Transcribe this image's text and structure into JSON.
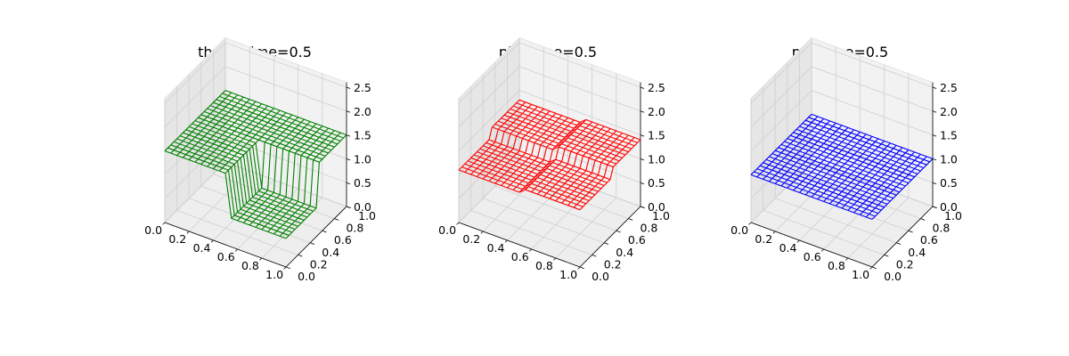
{
  "chart_data": [
    {
      "type": "surface",
      "title": "theta: time=0.5",
      "color": "#008000",
      "x": [
        0,
        0.05,
        0.1,
        0.15,
        0.2,
        0.25,
        0.3,
        0.35,
        0.4,
        0.45,
        0.5,
        0.55,
        0.6,
        0.65,
        0.7,
        0.75,
        0.8,
        0.85,
        0.9,
        0.95,
        1.0
      ],
      "y": [
        0,
        0.05,
        0.1,
        0.15,
        0.2,
        0.25,
        0.3,
        0.35,
        0.4,
        0.45,
        0.5,
        0.55,
        0.6,
        0.65,
        0.7,
        0.75,
        0.8,
        0.85,
        0.9,
        0.95,
        1.0
      ],
      "z_levels": {
        "low": 0.6,
        "mid": 1.5,
        "high": 2.1
      },
      "regions": [
        {
          "x_range": [
            0.0,
            0.5
          ],
          "y_range": [
            0.0,
            1.0
          ],
          "z": 1.5
        },
        {
          "x_range": [
            0.5,
            1.0
          ],
          "y_range": [
            0.0,
            0.5
          ],
          "z": 0.6
        },
        {
          "x_range": [
            0.5,
            1.0
          ],
          "y_range": [
            0.5,
            1.0
          ],
          "z": 1.5
        },
        {
          "x_range": [
            0.0,
            0.5
          ],
          "y_range": [
            0.5,
            1.0
          ],
          "z": 2.1
        }
      ],
      "xticks": [
        "0.0",
        "0.2",
        "0.4",
        "0.6",
        "0.8",
        "1.0"
      ],
      "yticks": [
        "0.0",
        "0.2",
        "0.4",
        "0.6",
        "0.8",
        "1.0"
      ],
      "zticks": [
        "0.0",
        "0.5",
        "1.0",
        "1.5",
        "2.0",
        "2.5"
      ],
      "xlim": [
        0,
        1
      ],
      "ylim": [
        0,
        1
      ],
      "zlim": [
        0,
        2.6
      ],
      "grid": true
    },
    {
      "type": "surface",
      "title": "phi: time=0.5",
      "color": "#ff0000",
      "x": [
        0,
        0.05,
        0.1,
        0.15,
        0.2,
        0.25,
        0.3,
        0.35,
        0.4,
        0.45,
        0.5,
        0.55,
        0.6,
        0.65,
        0.7,
        0.75,
        0.8,
        0.85,
        0.9,
        0.95,
        1.0
      ],
      "y": [
        0,
        0.05,
        0.1,
        0.15,
        0.2,
        0.25,
        0.3,
        0.35,
        0.4,
        0.45,
        0.5,
        0.55,
        0.6,
        0.65,
        0.7,
        0.75,
        0.8,
        0.85,
        0.9,
        0.95,
        1.0
      ],
      "regions": [
        {
          "x_range": [
            0.0,
            0.5
          ],
          "y_range": [
            0.0,
            0.5
          ],
          "z": 1.1
        },
        {
          "x_range": [
            0.5,
            1.0
          ],
          "y_range": [
            0.0,
            0.5
          ],
          "z": 1.2
        },
        {
          "x_range": [
            0.0,
            0.5
          ],
          "y_range": [
            0.5,
            1.0
          ],
          "z": 1.3
        },
        {
          "x_range": [
            0.5,
            1.0
          ],
          "y_range": [
            0.5,
            1.0
          ],
          "z": 1.4
        }
      ],
      "xticks": [
        "0.0",
        "0.2",
        "0.4",
        "0.6",
        "0.8",
        "1.0"
      ],
      "yticks": [
        "0.0",
        "0.2",
        "0.4",
        "0.6",
        "0.8",
        "1.0"
      ],
      "zticks": [
        "0.0",
        "0.5",
        "1.0",
        "1.5",
        "2.0",
        "2.5"
      ],
      "xlim": [
        0,
        1
      ],
      "ylim": [
        0,
        1
      ],
      "zlim": [
        0,
        2.6
      ],
      "grid": true
    },
    {
      "type": "surface",
      "title": "psi: time=0.5",
      "color": "#0000ff",
      "x": [
        0,
        0.05,
        0.1,
        0.15,
        0.2,
        0.25,
        0.3,
        0.35,
        0.4,
        0.45,
        0.5,
        0.55,
        0.6,
        0.65,
        0.7,
        0.75,
        0.8,
        0.85,
        0.9,
        0.95,
        1.0
      ],
      "y": [
        0,
        0.05,
        0.1,
        0.15,
        0.2,
        0.25,
        0.3,
        0.35,
        0.4,
        0.45,
        0.5,
        0.55,
        0.6,
        0.65,
        0.7,
        0.75,
        0.8,
        0.85,
        0.9,
        0.95,
        1.0
      ],
      "regions": [
        {
          "x_range": [
            0.0,
            1.0
          ],
          "y_range": [
            0.0,
            1.0
          ],
          "z": 1.0
        }
      ],
      "xticks": [
        "0.0",
        "0.2",
        "0.4",
        "0.6",
        "0.8",
        "1.0"
      ],
      "yticks": [
        "0.0",
        "0.2",
        "0.4",
        "0.6",
        "0.8",
        "1.0"
      ],
      "zticks": [
        "0.0",
        "0.5",
        "1.0",
        "1.5",
        "2.0",
        "2.5"
      ],
      "xlim": [
        0,
        1
      ],
      "ylim": [
        0,
        1
      ],
      "zlim": [
        0,
        2.6
      ],
      "grid": true
    }
  ]
}
